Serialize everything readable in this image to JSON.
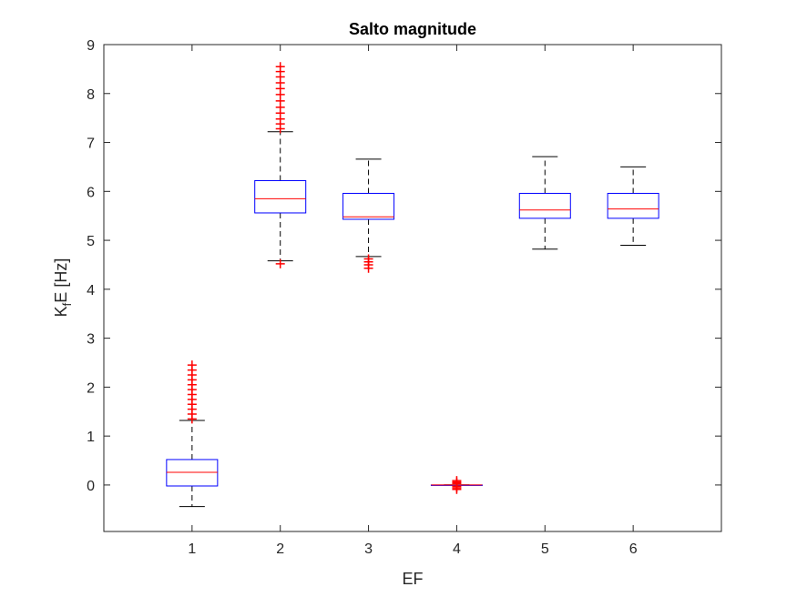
{
  "chart_data": {
    "type": "box",
    "title": "Salto magnitude",
    "xlabel": "EF",
    "ylabel_main": "K",
    "ylabel_sub": "f",
    "ylabel_rest": "E [Hz]",
    "ylim": [
      -0.95,
      9
    ],
    "categories": [
      "1",
      "2",
      "3",
      "4",
      "5",
      "6"
    ],
    "y_ticks": [
      "0",
      "1",
      "2",
      "3",
      "4",
      "5",
      "6",
      "7",
      "8",
      "9"
    ],
    "colors": {
      "box": "#0000ff",
      "median": "#ff0000",
      "whisker": "#000000",
      "outlier": "#ff0000"
    },
    "boxes": [
      {
        "category": "1",
        "lower_whisker": -0.44,
        "q1": -0.02,
        "median": 0.26,
        "q3": 0.52,
        "upper_whisker": 1.32,
        "outliers_low": [],
        "outliers_high": [
          1.35,
          1.45,
          1.55,
          1.65,
          1.75,
          1.85,
          1.95,
          2.05,
          2.15,
          2.25,
          2.35,
          2.45
        ]
      },
      {
        "category": "2",
        "lower_whisker": 4.58,
        "q1": 5.56,
        "median": 5.85,
        "q3": 6.22,
        "upper_whisker": 7.22,
        "outliers_low": [
          4.52
        ],
        "outliers_high": [
          7.28,
          7.38,
          7.48,
          7.6,
          7.72,
          7.85,
          7.98,
          8.1,
          8.22,
          8.34,
          8.45,
          8.55
        ]
      },
      {
        "category": "3",
        "lower_whisker": 4.67,
        "q1": 5.43,
        "median": 5.48,
        "q3": 5.96,
        "upper_whisker": 6.66,
        "outliers_low": [
          4.62,
          4.56,
          4.5,
          4.43
        ],
        "outliers_high": []
      },
      {
        "category": "4",
        "lower_whisker": 0.0,
        "q1": 0.0,
        "median": 0.0,
        "q3": 0.0,
        "upper_whisker": 0.0,
        "outliers_low": [
          -0.03,
          -0.06,
          -0.09
        ],
        "outliers_high": [
          0.03,
          0.06,
          0.09
        ]
      },
      {
        "category": "5",
        "lower_whisker": 4.82,
        "q1": 5.45,
        "median": 5.62,
        "q3": 5.96,
        "upper_whisker": 6.71,
        "outliers_low": [],
        "outliers_high": []
      },
      {
        "category": "6",
        "lower_whisker": 4.9,
        "q1": 5.45,
        "median": 5.64,
        "q3": 5.96,
        "upper_whisker": 6.5,
        "outliers_low": [],
        "outliers_high": []
      }
    ]
  }
}
